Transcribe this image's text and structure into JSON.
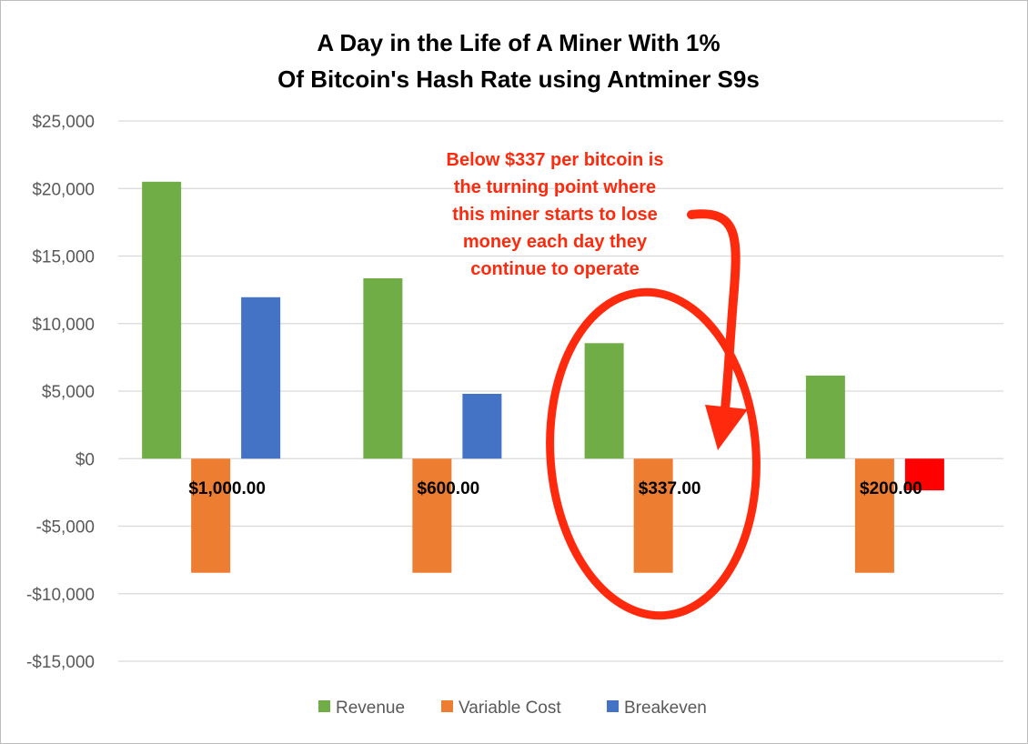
{
  "chart_data": {
    "type": "bar",
    "title": [
      "A Day in the Life of A Miner With 1%",
      "Of Bitcoin's Hash Rate using Antminer S9s"
    ],
    "categories": [
      "$1,000.00",
      "$600.00",
      "$337.00",
      "$200.00"
    ],
    "series": [
      {
        "name": "Revenue",
        "values": [
          20500,
          13350,
          8550,
          6150
        ],
        "color": "#70ad47"
      },
      {
        "name": "Variable Cost",
        "values": [
          -8450,
          -8450,
          -8450,
          -8450
        ],
        "color": "#ed7d31"
      },
      {
        "name": "Breakeven",
        "values": [
          11950,
          4800,
          0,
          -2350
        ],
        "color": "#4472c4"
      }
    ],
    "highlight": {
      "series": "Breakeven",
      "category": "$200.00",
      "color": "#ff0000"
    },
    "ylim": [
      -15000,
      25000
    ],
    "yticks": [
      25000,
      20000,
      15000,
      10000,
      5000,
      0,
      -5000,
      -10000,
      -15000
    ],
    "ytick_labels": [
      "$25,000",
      "$20,000",
      "$15,000",
      "$10,000",
      "$5,000",
      "$0",
      "-$5,000",
      "-$10,000",
      "-$15,000"
    ],
    "grid": true,
    "legend_position": "bottom",
    "annotation": {
      "lines": [
        "Below $337 per bitcoin is",
        "the turning point where",
        "this miner starts to lose",
        "money each day they",
        "continue to operate"
      ],
      "color": "#ff2a0d",
      "target_category": "$337.00"
    }
  }
}
